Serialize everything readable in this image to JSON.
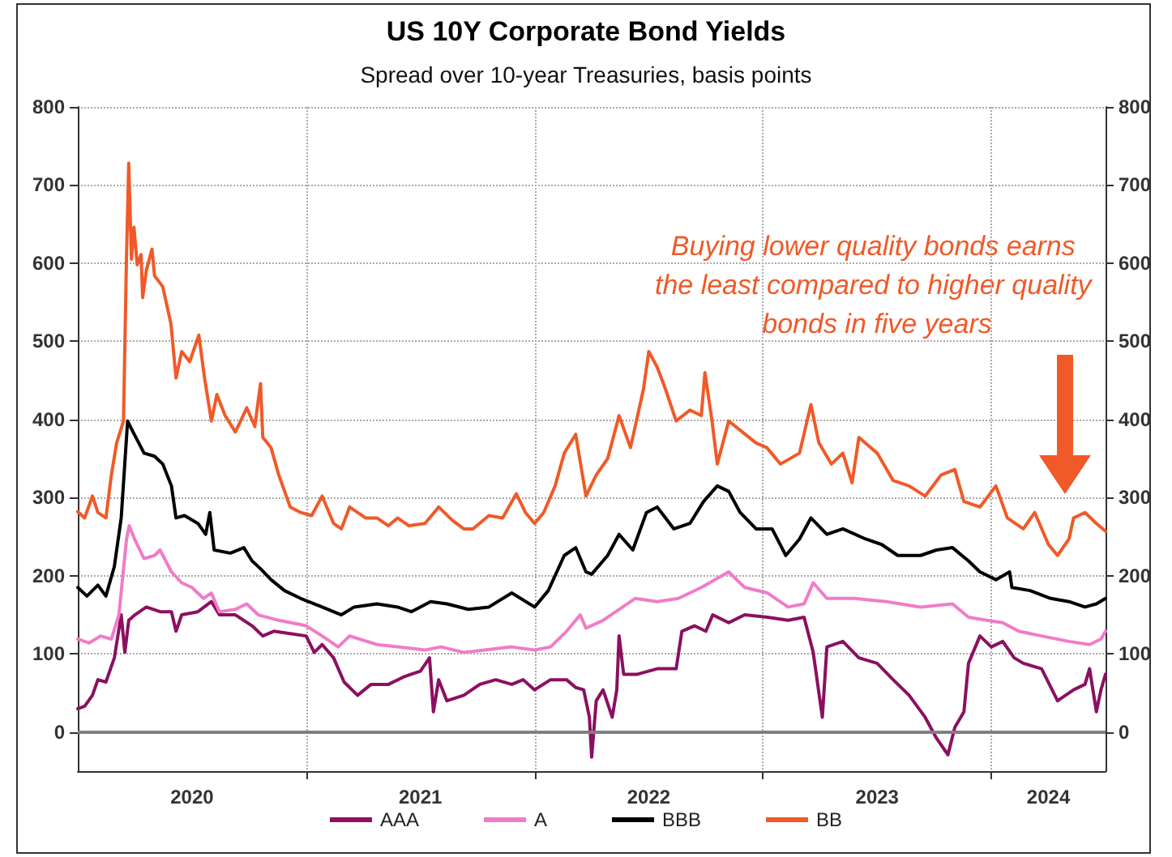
{
  "chart_data": {
    "type": "line",
    "title": "US 10Y Corporate Bond Yields",
    "subtitle": "Spread over 10-year Treasuries, basis points",
    "annotations": [
      "Buying lower quality bonds earns the least compared to higher quality bonds in five years"
    ],
    "xlim": [
      2020,
      2024.5
    ],
    "xticks": [
      {
        "value": 2020.5,
        "label": "2020"
      },
      {
        "value": 2021,
        "label": null
      },
      {
        "value": 2021.5,
        "label": "2021"
      },
      {
        "value": 2022,
        "label": null
      },
      {
        "value": 2022.5,
        "label": "2022"
      },
      {
        "value": 2023,
        "label": null
      },
      {
        "value": 2023.5,
        "label": "2023"
      },
      {
        "value": 2024,
        "label": null
      },
      {
        "value": 2024.25,
        "label": "2024"
      }
    ],
    "ylim": [
      -50,
      800
    ],
    "yticks": [
      0,
      100,
      200,
      300,
      400,
      500,
      600,
      700,
      800
    ],
    "y2lim": [
      -50,
      800
    ],
    "y2ticks": [
      0,
      100,
      200,
      300,
      400,
      500,
      600,
      700,
      800
    ],
    "grid": true,
    "legend": "bottom",
    "marker": "none",
    "line_style": "solid",
    "ref_lines": [
      {
        "axis": "y",
        "value": 0,
        "color": "#7f7f7f"
      }
    ],
    "series": [
      {
        "name": "AAA",
        "color": "#8b1060",
        "x": [
          2020.0,
          2020.03,
          2020.064,
          2020.088,
          2020.123,
          2020.16,
          2020.19,
          2020.206,
          2020.223,
          2020.25,
          2020.3,
          2020.36,
          2020.41,
          2020.43,
          2020.455,
          2020.526,
          2020.585,
          2020.62,
          2020.69,
          2020.763,
          2020.81,
          2020.858,
          2020.93,
          2021.0,
          2021.035,
          2021.07,
          2021.12,
          2021.166,
          2021.225,
          2021.284,
          2021.36,
          2021.43,
          2021.5,
          2021.54,
          2021.557,
          2021.58,
          2021.616,
          2021.69,
          2021.76,
          2021.83,
          2021.9,
          2021.95,
          2022.0,
          2022.07,
          2022.14,
          2022.18,
          2022.215,
          2022.24,
          2022.25,
          2022.27,
          2022.3,
          2022.34,
          2022.36,
          2022.37,
          2022.39,
          2022.45,
          2022.537,
          2022.62,
          2022.645,
          2022.7,
          2022.75,
          2022.78,
          2022.85,
          2022.92,
          2023.02,
          2023.11,
          2023.18,
          2023.22,
          2023.26,
          2023.28,
          2023.35,
          2023.42,
          2023.5,
          2023.57,
          2023.64,
          2023.71,
          2023.76,
          2023.81,
          2023.84,
          2023.88,
          2023.9,
          2023.95,
          2024.0,
          2024.05,
          2024.1,
          2024.14,
          2024.22,
          2024.29,
          2024.36,
          2024.41,
          2024.43,
          2024.46,
          2024.48,
          2024.5
        ],
        "values": [
          30,
          33,
          47,
          67,
          64,
          95,
          150,
          102,
          143,
          150,
          160,
          154,
          154,
          129,
          150,
          154,
          167,
          150,
          150,
          136,
          123,
          129,
          126,
          123,
          102,
          112,
          95,
          64,
          47,
          61,
          61,
          71,
          78,
          95,
          26,
          67,
          40,
          47,
          61,
          67,
          61,
          67,
          54,
          67,
          67,
          57,
          54,
          19,
          -32,
          40,
          54,
          19,
          54,
          123,
          74,
          74,
          81,
          81,
          129,
          136,
          129,
          150,
          140,
          150,
          147,
          143,
          147,
          102,
          19,
          109,
          116,
          95,
          88,
          67,
          47,
          19,
          -8,
          -29,
          6,
          26,
          88,
          123,
          109,
          116,
          95,
          88,
          81,
          40,
          54,
          61,
          81,
          26,
          54,
          74
        ]
      },
      {
        "name": "A",
        "color": "#f07cc8",
        "x": [
          2020.0,
          2020.05,
          2020.1,
          2020.147,
          2020.18,
          2020.213,
          2020.225,
          2020.25,
          2020.29,
          2020.336,
          2020.36,
          2020.41,
          2020.455,
          2020.5,
          2020.55,
          2020.585,
          2020.62,
          2020.69,
          2020.74,
          2020.79,
          2020.88,
          2021.0,
          2021.07,
          2021.14,
          2021.19,
          2021.31,
          2021.4,
          2021.52,
          2021.59,
          2021.69,
          2021.78,
          2021.9,
          2022.0,
          2022.07,
          2022.14,
          2022.2,
          2022.225,
          2022.3,
          2022.37,
          2022.44,
          2022.537,
          2022.63,
          2022.73,
          2022.85,
          2022.92,
          2023.02,
          2023.11,
          2023.18,
          2023.22,
          2023.28,
          2023.4,
          2023.54,
          2023.69,
          2023.83,
          2023.9,
          2023.98,
          2024.05,
          2024.12,
          2024.22,
          2024.34,
          2024.43,
          2024.48,
          2024.5
        ],
        "values": [
          119,
          114,
          123,
          119,
          150,
          246,
          264,
          246,
          222,
          226,
          233,
          205,
          191,
          185,
          171,
          178,
          154,
          157,
          164,
          150,
          143,
          136,
          123,
          109,
          123,
          112,
          109,
          105,
          109,
          102,
          105,
          109,
          105,
          109,
          129,
          150,
          133,
          143,
          157,
          171,
          167,
          171,
          185,
          205,
          185,
          178,
          160,
          164,
          191,
          171,
          171,
          167,
          160,
          164,
          147,
          143,
          140,
          129,
          123,
          116,
          112,
          119,
          129
        ]
      },
      {
        "name": "BBB",
        "color": "#000000",
        "x": [
          2020.0,
          2020.04,
          2020.088,
          2020.123,
          2020.16,
          2020.19,
          2020.218,
          2020.242,
          2020.29,
          2020.336,
          2020.372,
          2020.41,
          2020.43,
          2020.467,
          2020.526,
          2020.56,
          2020.578,
          2020.597,
          2020.668,
          2020.727,
          2020.763,
          2020.8,
          2020.846,
          2020.905,
          2020.976,
          2021.07,
          2021.154,
          2021.21,
          2021.31,
          2021.4,
          2021.46,
          2021.545,
          2021.616,
          2021.71,
          2021.8,
          2021.9,
          2022.0,
          2022.06,
          2022.13,
          2022.18,
          2022.225,
          2022.25,
          2022.32,
          2022.37,
          2022.43,
          2022.49,
          2022.537,
          2022.61,
          2022.68,
          2022.74,
          2022.8,
          2022.85,
          2022.9,
          2022.97,
          2023.04,
          2023.1,
          2023.16,
          2023.21,
          2023.28,
          2023.35,
          2023.45,
          2023.52,
          2023.59,
          2023.69,
          2023.76,
          2023.83,
          2023.9,
          2023.95,
          2024.02,
          2024.08,
          2024.09,
          2024.17,
          2024.26,
          2024.34,
          2024.41,
          2024.46,
          2024.5
        ],
        "values": [
          185,
          174,
          188,
          174,
          212,
          274,
          398,
          384,
          357,
          353,
          343,
          315,
          274,
          277,
          267,
          253,
          281,
          233,
          229,
          236,
          219,
          209,
          195,
          181,
          171,
          160,
          150,
          160,
          164,
          160,
          154,
          167,
          164,
          157,
          160,
          178,
          160,
          181,
          226,
          236,
          205,
          202,
          226,
          253,
          233,
          281,
          288,
          260,
          267,
          295,
          315,
          308,
          281,
          260,
          260,
          226,
          247,
          274,
          253,
          260,
          247,
          240,
          226,
          226,
          233,
          236,
          219,
          205,
          195,
          205,
          185,
          181,
          171,
          167,
          160,
          164,
          171
        ]
      },
      {
        "name": "BB",
        "color": "#f05a28",
        "x": [
          2020.0,
          2020.03,
          2020.064,
          2020.088,
          2020.123,
          2020.147,
          2020.17,
          2020.2,
          2020.213,
          2020.223,
          2020.235,
          2020.246,
          2020.26,
          2020.277,
          2020.284,
          2020.3,
          2020.325,
          2020.336,
          2020.372,
          2020.408,
          2020.43,
          2020.455,
          2020.49,
          2020.53,
          2020.555,
          2020.585,
          2020.609,
          2020.645,
          2020.69,
          2020.74,
          2020.775,
          2020.8,
          2020.81,
          2020.846,
          2020.88,
          2020.93,
          2020.976,
          2021.024,
          2021.07,
          2021.12,
          2021.154,
          2021.19,
          2021.26,
          2021.31,
          2021.36,
          2021.4,
          2021.45,
          2021.52,
          2021.58,
          2021.64,
          2021.69,
          2021.73,
          2021.8,
          2021.86,
          2021.92,
          2021.96,
          2022.0,
          2022.04,
          2022.09,
          2022.13,
          2022.18,
          2022.225,
          2022.27,
          2022.32,
          2022.37,
          2022.42,
          2022.477,
          2022.5,
          2022.537,
          2022.573,
          2022.62,
          2022.68,
          2022.73,
          2022.746,
          2022.777,
          2022.8,
          2022.85,
          2022.91,
          2022.97,
          2023.017,
          2023.077,
          2023.16,
          2023.21,
          2023.245,
          2023.3,
          2023.35,
          2023.39,
          2023.42,
          2023.5,
          2023.57,
          2023.64,
          2023.71,
          2023.78,
          2023.84,
          2023.88,
          2023.95,
          2024.02,
          2024.07,
          2024.14,
          2024.19,
          2024.25,
          2024.29,
          2024.34,
          2024.36,
          2024.41,
          2024.46,
          2024.5
        ],
        "values": [
          282,
          274,
          302,
          281,
          274,
          329,
          370,
          398,
          605,
          728,
          605,
          646,
          598,
          611,
          556,
          591,
          618,
          584,
          570,
          522,
          453,
          487,
          474,
          508,
          453,
          398,
          432,
          405,
          384,
          415,
          391,
          446,
          377,
          364,
          329,
          288,
          281,
          277,
          302,
          267,
          260,
          288,
          274,
          274,
          264,
          274,
          264,
          267,
          288,
          271,
          260,
          260,
          277,
          274,
          305,
          281,
          267,
          281,
          315,
          357,
          381,
          302,
          329,
          350,
          405,
          364,
          439,
          487,
          467,
          439,
          398,
          412,
          405,
          460,
          398,
          343,
          398,
          384,
          370,
          364,
          343,
          357,
          419,
          370,
          343,
          357,
          319,
          377,
          357,
          322,
          315,
          302,
          329,
          336,
          295,
          288,
          315,
          274,
          260,
          281,
          240,
          226,
          247,
          274,
          281,
          267,
          257
        ]
      }
    ]
  }
}
